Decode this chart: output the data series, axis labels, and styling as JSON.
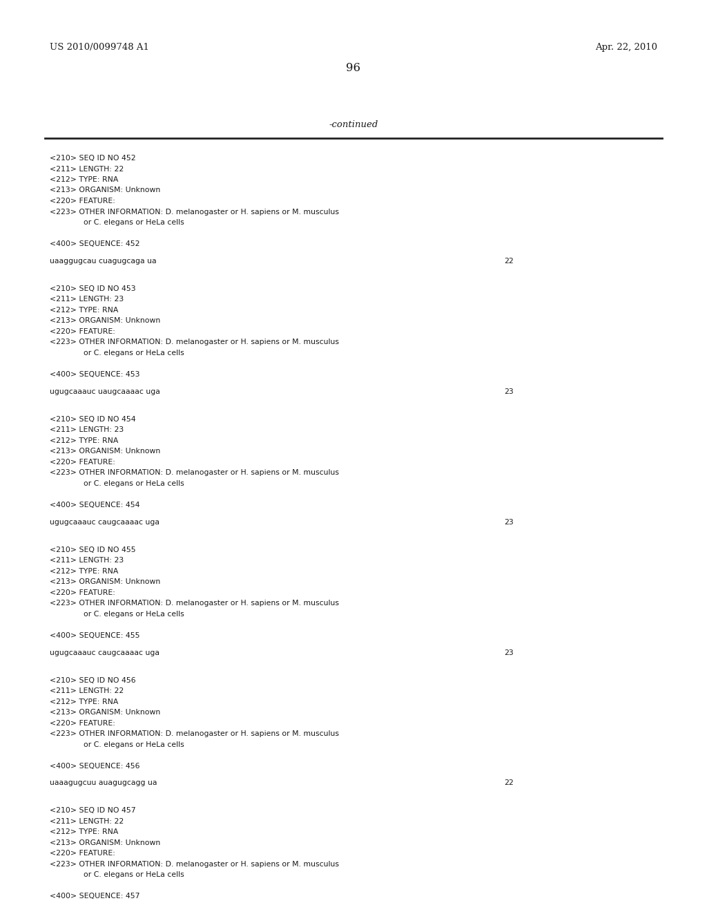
{
  "bg_color": "#ffffff",
  "header_left": "US 2010/0099748 A1",
  "header_right": "Apr. 22, 2010",
  "page_number": "96",
  "continued_text": "-continued",
  "monospace_font": "Courier New",
  "serif_font": "DejaVu Serif",
  "entries": [
    {
      "seq_id": "452",
      "length": "22",
      "type": "RNA",
      "organism": "Unknown",
      "other_info_line1": "D. melanogaster or H. sapiens or M. musculus",
      "other_info_line2": "      or C. elegans or HeLa cells",
      "sequence": "uaaggugcau cuagugcaga ua",
      "seq_length_val": "22"
    },
    {
      "seq_id": "453",
      "length": "23",
      "type": "RNA",
      "organism": "Unknown",
      "other_info_line1": "D. melanogaster or H. sapiens or M. musculus",
      "other_info_line2": "      or C. elegans or HeLa cells",
      "sequence": "ugugcaaauc uaugcaaaac uga",
      "seq_length_val": "23"
    },
    {
      "seq_id": "454",
      "length": "23",
      "type": "RNA",
      "organism": "Unknown",
      "other_info_line1": "D. melanogaster or H. sapiens or M. musculus",
      "other_info_line2": "      or C. elegans or HeLa cells",
      "sequence": "ugugcaaauc caugcaaaac uga",
      "seq_length_val": "23"
    },
    {
      "seq_id": "455",
      "length": "23",
      "type": "RNA",
      "organism": "Unknown",
      "other_info_line1": "D. melanogaster or H. sapiens or M. musculus",
      "other_info_line2": "      or C. elegans or HeLa cells",
      "sequence": "ugugcaaauc caugcaaaac uga",
      "seq_length_val": "23"
    },
    {
      "seq_id": "456",
      "length": "22",
      "type": "RNA",
      "organism": "Unknown",
      "other_info_line1": "D. melanogaster or H. sapiens or M. musculus",
      "other_info_line2": "      or C. elegans or HeLa cells",
      "sequence": "uaaagugcuu auagugcagg ua",
      "seq_length_val": "22"
    },
    {
      "seq_id": "457",
      "length": "22",
      "type": "RNA",
      "organism": "Unknown",
      "other_info_line1": "D. melanogaster or H. sapiens or M. musculus",
      "other_info_line2": "      or C. elegans or HeLa cells",
      "sequence": "",
      "seq_length_val": ""
    }
  ]
}
